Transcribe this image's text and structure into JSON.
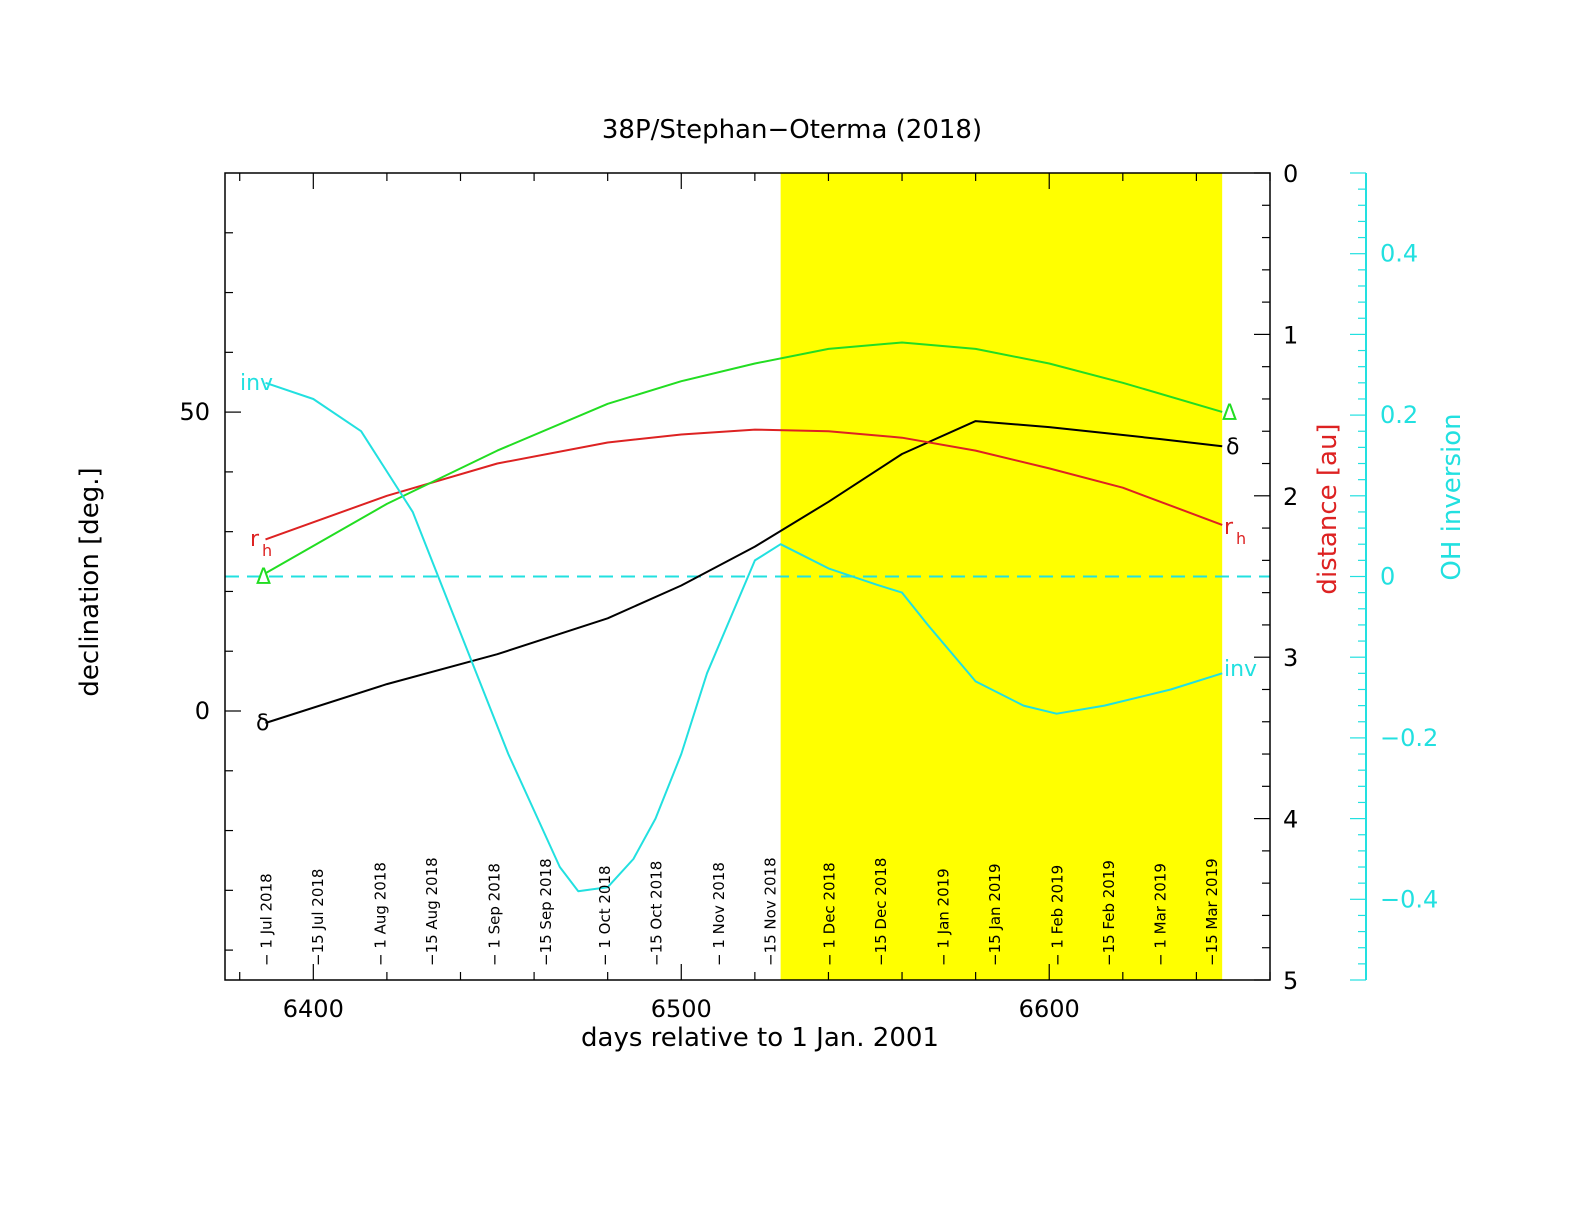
{
  "chart_data": {
    "type": "line",
    "title": "38P/Stephan−Oterma (2018)",
    "xlabel": "days relative to 1 Jan. 2001",
    "ylabel_left": "declination [deg.]",
    "ylabel_right_distance": "distance [au]",
    "ylabel_right_oh": "OH inversion",
    "xlim": [
      6376,
      6660
    ],
    "xticks": [
      6400,
      6500,
      6600
    ],
    "ylim_left": [
      -45,
      90
    ],
    "yticks_left": [
      0,
      50
    ],
    "ylim_distance": [
      0,
      5
    ],
    "yticks_distance": [
      0,
      1,
      2,
      3,
      4,
      5
    ],
    "ylim_oh": [
      -0.5,
      0.5
    ],
    "yticks_oh": [
      "−0.4",
      "−0.2",
      "0",
      "0.2",
      "0.4"
    ],
    "shaded_region": {
      "x_start": 6527,
      "x_end": 6647,
      "color": "#ffff00"
    },
    "zero_line_oh": 0,
    "series": [
      {
        "name": "δ",
        "axis": "declination",
        "color": "#000000",
        "x": [
          6387,
          6420,
          6450,
          6480,
          6500,
          6520,
          6540,
          6560,
          6580,
          6600,
          6615,
          6630,
          6647
        ],
        "y": [
          -2,
          4.5,
          9.5,
          15.5,
          21,
          27.5,
          35,
          43,
          48.5,
          47.5,
          46.5,
          45.5,
          44.3
        ]
      },
      {
        "name": "r_h",
        "axis": "distance",
        "color": "#dd2222",
        "x": [
          6387,
          6420,
          6450,
          6480,
          6500,
          6520,
          6540,
          6560,
          6580,
          6600,
          6620,
          6647
        ],
        "y": [
          2.27,
          2.0,
          1.8,
          1.67,
          1.62,
          1.59,
          1.6,
          1.64,
          1.72,
          1.83,
          1.95,
          2.18
        ]
      },
      {
        "name": "Δ",
        "axis": "distance",
        "color": "#22dd22",
        "x": [
          6387,
          6420,
          6450,
          6480,
          6500,
          6520,
          6540,
          6560,
          6580,
          6600,
          6620,
          6647
        ],
        "y": [
          2.48,
          2.05,
          1.72,
          1.43,
          1.29,
          1.18,
          1.09,
          1.05,
          1.09,
          1.18,
          1.3,
          1.48
        ]
      },
      {
        "name": "inv",
        "axis": "oh_inversion",
        "color": "#22e0e0",
        "x": [
          6387,
          6400,
          6413,
          6427,
          6440,
          6453,
          6467,
          6472,
          6480,
          6487,
          6493,
          6500,
          6507,
          6520,
          6527,
          6540,
          6553,
          6560,
          6567,
          6580,
          6593,
          6602,
          6615,
          6633,
          6647
        ],
        "y": [
          0.24,
          0.22,
          0.18,
          0.08,
          -0.07,
          -0.22,
          -0.36,
          -0.39,
          -0.385,
          -0.35,
          -0.3,
          -0.22,
          -0.12,
          0.02,
          0.04,
          0.01,
          -0.01,
          -0.02,
          -0.06,
          -0.13,
          -0.16,
          -0.17,
          -0.16,
          -0.14,
          -0.12
        ]
      }
    ],
    "curve_labels": {
      "delta": "δ",
      "rh_main": "r",
      "rh_sub": "h",
      "Delta": "Δ",
      "inv": "inv"
    },
    "date_labels": [
      {
        "x": 6387,
        "text": "− 1 Jul 2018"
      },
      {
        "x": 6401,
        "text": "−15 Jul 2018"
      },
      {
        "x": 6418,
        "text": "− 1 Aug 2018"
      },
      {
        "x": 6432,
        "text": "−15 Aug 2018"
      },
      {
        "x": 6449,
        "text": "− 1 Sep 2018"
      },
      {
        "x": 6463,
        "text": "−15 Sep 2018"
      },
      {
        "x": 6479,
        "text": "− 1 Oct 2018"
      },
      {
        "x": 6493,
        "text": "−15 Oct 2018"
      },
      {
        "x": 6510,
        "text": "− 1 Nov 2018"
      },
      {
        "x": 6524,
        "text": "−15 Nov 2018"
      },
      {
        "x": 6540,
        "text": "− 1 Dec 2018"
      },
      {
        "x": 6554,
        "text": "−15 Dec 2018"
      },
      {
        "x": 6571,
        "text": "− 1 Jan 2019"
      },
      {
        "x": 6585,
        "text": "−15 Jan 2019"
      },
      {
        "x": 6602,
        "text": "− 1 Feb 2019"
      },
      {
        "x": 6616,
        "text": "−15 Feb 2019"
      },
      {
        "x": 6630,
        "text": "− 1 Mar 2019"
      },
      {
        "x": 6644,
        "text": "−15 Mar 2019"
      }
    ]
  }
}
